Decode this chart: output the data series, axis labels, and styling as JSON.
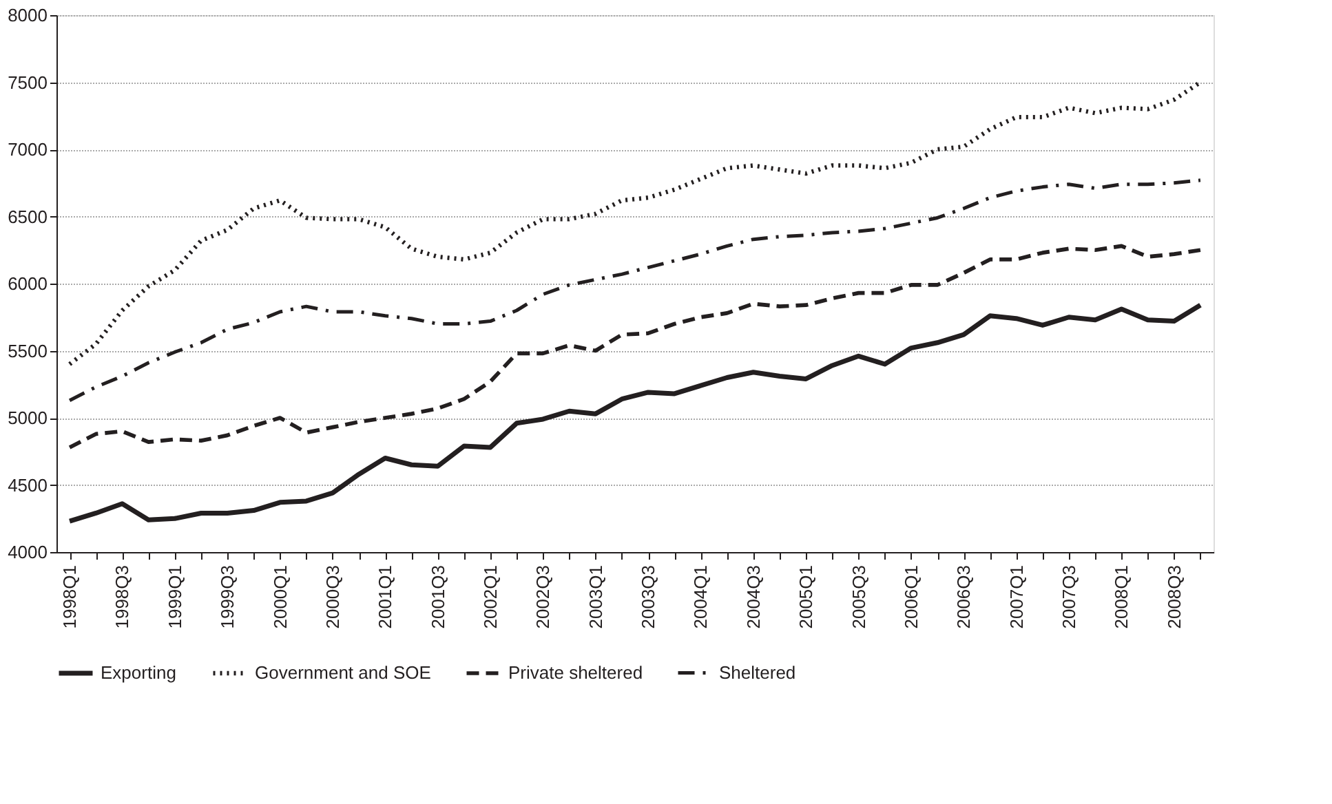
{
  "chart_data": {
    "type": "line",
    "categories": [
      "1998Q1",
      null,
      "1998Q3",
      null,
      "1999Q1",
      null,
      "1999Q3",
      null,
      "2000Q1",
      null,
      "2000Q3",
      null,
      "2001Q1",
      null,
      "2001Q3",
      null,
      "2002Q1",
      null,
      "2002Q3",
      null,
      "2003Q1",
      null,
      "2003Q3",
      null,
      "2004Q1",
      null,
      "2004Q3",
      null,
      "2005Q1",
      null,
      "2005Q3",
      null,
      "2006Q1",
      null,
      "2006Q3",
      null,
      "2007Q1",
      null,
      "2007Q3",
      null,
      "2008Q1",
      null,
      "2008Q3",
      null
    ],
    "series": [
      {
        "name": "Exporting",
        "color": "#231f20",
        "line_style": "solid",
        "values": [
          4230,
          4290,
          4360,
          4240,
          4250,
          4290,
          4290,
          4310,
          4370,
          4380,
          4440,
          4580,
          4700,
          4650,
          4640,
          4790,
          4780,
          4960,
          4990,
          5050,
          5030,
          5140,
          5190,
          5180,
          5240,
          5300,
          5340,
          5310,
          5290,
          5390,
          5460,
          5400,
          5520,
          5560,
          5620,
          5760,
          5740,
          5690,
          5750,
          5730,
          5810,
          5730,
          5720,
          5840
        ]
      },
      {
        "name": "Government and SOE",
        "color": "#231f20",
        "line_style": "dotted",
        "values": [
          5400,
          5550,
          5800,
          5980,
          6100,
          6320,
          6400,
          6560,
          6620,
          6490,
          6480,
          6480,
          6420,
          6260,
          6200,
          6180,
          6230,
          6380,
          6480,
          6480,
          6520,
          6620,
          6640,
          6700,
          6780,
          6860,
          6880,
          6850,
          6820,
          6880,
          6880,
          6860,
          6900,
          7000,
          7020,
          7150,
          7240,
          7240,
          7310,
          7270,
          7310,
          7300,
          7370,
          7500
        ]
      },
      {
        "name": "Private sheltered",
        "color": "#231f20",
        "line_style": "dashed",
        "values": [
          4780,
          4880,
          4900,
          4820,
          4840,
          4830,
          4870,
          4940,
          5000,
          4890,
          4930,
          4970,
          5000,
          5030,
          5070,
          5140,
          5270,
          5480,
          5480,
          5540,
          5500,
          5620,
          5630,
          5700,
          5750,
          5780,
          5850,
          5830,
          5840,
          5890,
          5930,
          5930,
          5990,
          5990,
          6080,
          6180,
          6180,
          6230,
          6260,
          6250,
          6280,
          6200,
          6220,
          6250
        ]
      },
      {
        "name": "Sheltered",
        "color": "#231f20",
        "line_style": "dashdot",
        "values": [
          5130,
          5230,
          5310,
          5410,
          5490,
          5560,
          5660,
          5710,
          5790,
          5830,
          5790,
          5790,
          5760,
          5740,
          5700,
          5700,
          5720,
          5800,
          5920,
          5990,
          6030,
          6070,
          6120,
          6170,
          6220,
          6280,
          6330,
          6350,
          6360,
          6380,
          6390,
          6410,
          6450,
          6490,
          6560,
          6640,
          6690,
          6720,
          6740,
          6710,
          6740,
          6740,
          6750,
          6770
        ]
      }
    ],
    "ylim": [
      4000,
      8000
    ],
    "yticks": [
      4000,
      4500,
      5000,
      5500,
      6000,
      6500,
      7000,
      7500,
      8000
    ],
    "grid": "y",
    "legend": "bottom"
  }
}
